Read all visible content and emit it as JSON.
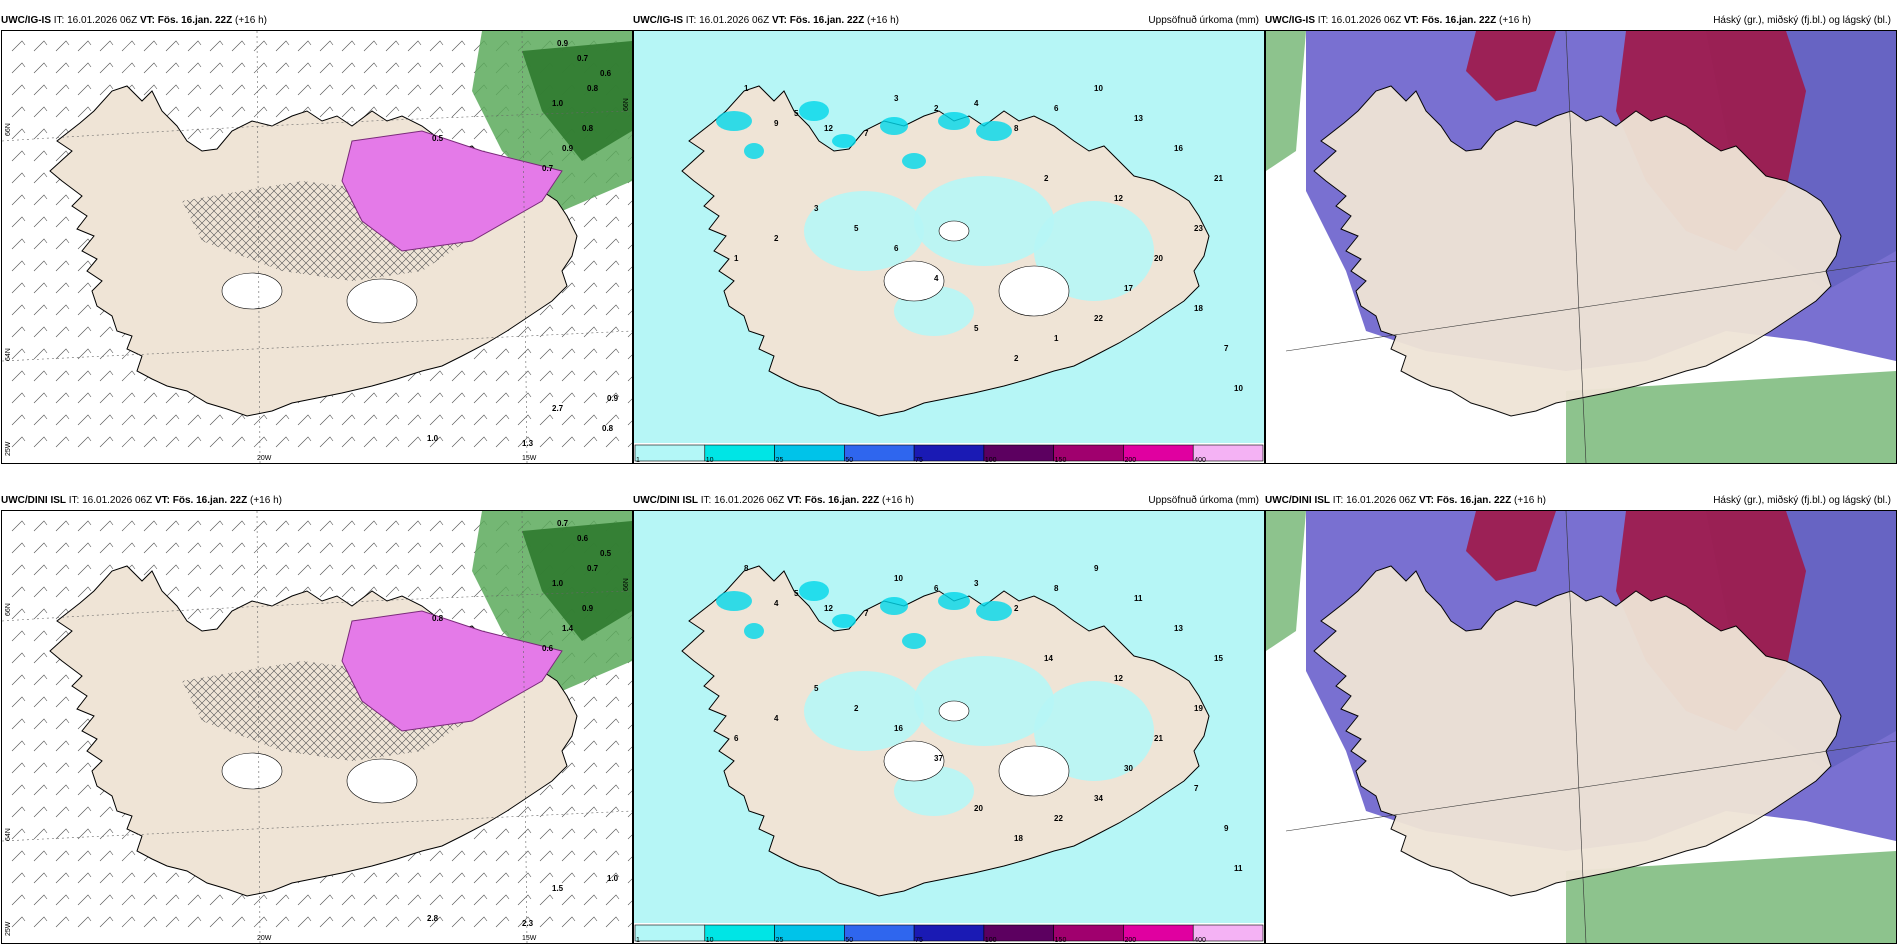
{
  "panels": [
    {
      "id": "top-left",
      "model": "UWC/IG-IS",
      "it": "IT: 16.01.2026 06Z",
      "vt": "VT: Fös. 16.jan. 22Z",
      "lead": "(+16 h)",
      "title": ""
    },
    {
      "id": "top-mid",
      "model": "UWC/IG-IS",
      "it": "IT: 16.01.2026 06Z",
      "vt": "VT: Fös. 16.jan. 22Z",
      "lead": "(+16 h)",
      "title": "Uppsöfnuð úrkoma (mm)"
    },
    {
      "id": "top-right",
      "model": "UWC/IG-IS",
      "it": "IT: 16.01.2026 06Z",
      "vt": "VT: Fös. 16.jan. 22Z",
      "lead": "(+16 h)",
      "title": "Háský (gr.), miðský (fj.bl.) og lágský (bl.)"
    },
    {
      "id": "bot-left",
      "model": "UWC/DINI ISL",
      "it": "IT: 16.01.2026 06Z",
      "vt": "VT: Fös. 16.jan. 22Z",
      "lead": "(+16 h)",
      "title": ""
    },
    {
      "id": "bot-mid",
      "model": "UWC/DINI ISL",
      "it": "IT: 16.01.2026 06Z",
      "vt": "VT: Fös. 16.jan. 22Z",
      "lead": "(+16 h)",
      "title": "Uppsöfnuð úrkoma (mm)"
    },
    {
      "id": "bot-right",
      "model": "UWC/DINI ISL",
      "it": "IT: 16.01.2026 06Z",
      "vt": "VT: Fös. 16.jan. 22Z",
      "lead": "(+16 h)",
      "title": "Háský (gr.), miðský (fj.bl.) og lágský (bl.)"
    }
  ],
  "axes": {
    "lon": [
      "20W",
      "15W"
    ],
    "lat_top": [
      "66N",
      "64N",
      "25W"
    ],
    "lat_right": [
      "66N",
      "66N"
    ]
  },
  "colorbar": {
    "labels": [
      "1",
      "10",
      "25",
      "50",
      "75",
      "100",
      "150",
      "200",
      "400"
    ],
    "colors": [
      "#b3f7f7",
      "#00e5e5",
      "#00c3e9",
      "#2f66ee",
      "#1a1ab4",
      "#5c0060",
      "#a0006e",
      "#e000a0",
      "#f4b2f4"
    ]
  },
  "colors": {
    "land": "#efe4d6",
    "ocean": "#b6f6f6",
    "pink": "#e47ae8",
    "green": "#5caa5c",
    "violet": "#6a60cc",
    "crimson": "#a01848"
  },
  "precip_top": [
    "1",
    "9",
    "5",
    "12",
    "7",
    "3",
    "2",
    "4",
    "8",
    "6",
    "10",
    "13",
    "16",
    "21",
    "23",
    "20",
    "17",
    "22",
    "1",
    "2",
    "5",
    "4",
    "6",
    "5",
    "3",
    "2",
    "1",
    "18",
    "7",
    "10",
    "12",
    "2"
  ],
  "precip_bot": [
    "8",
    "4",
    "5",
    "12",
    "7",
    "10",
    "6",
    "3",
    "2",
    "8",
    "9",
    "11",
    "13",
    "15",
    "19",
    "21",
    "30",
    "34",
    "22",
    "18",
    "20",
    "37",
    "16",
    "2",
    "5",
    "4",
    "6",
    "7",
    "9",
    "11",
    "12",
    "14"
  ],
  "snow_top": [
    "0.9",
    "0.7",
    "0.6",
    "0.8",
    "0.5",
    "1.0",
    "0.8",
    "0.9",
    "0.7",
    "2.7",
    "1.3",
    "1.0",
    "0.9",
    "0.8"
  ],
  "snow_bot": [
    "0.7",
    "0.6",
    "0.5",
    "0.7",
    "0.8",
    "1.0",
    "0.9",
    "1.4",
    "0.6",
    "1.5",
    "2.3",
    "2.8",
    "1.0"
  ]
}
